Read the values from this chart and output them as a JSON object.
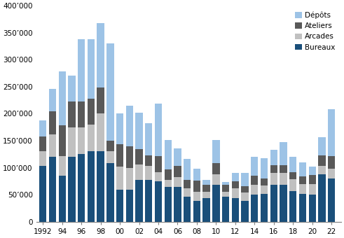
{
  "years": [
    1992,
    1993,
    1994,
    1995,
    1996,
    1997,
    1998,
    1999,
    2000,
    2001,
    2002,
    2003,
    2004,
    2005,
    2006,
    2007,
    2008,
    2009,
    2010,
    2011,
    2012,
    2013,
    2014,
    2015,
    2016,
    2017,
    2018,
    2019,
    2020,
    2021,
    2022
  ],
  "xtick_labels": [
    "1992",
    "94",
    "96",
    "98",
    "00",
    "02",
    "04",
    "06",
    "08",
    "10",
    "12",
    "14",
    "16",
    "18",
    "20",
    "22"
  ],
  "xtick_positions": [
    1992,
    1994,
    1996,
    1998,
    2000,
    2002,
    2004,
    2006,
    2008,
    2010,
    2012,
    2014,
    2016,
    2018,
    2020,
    2022
  ],
  "Bureaux": [
    103000,
    120000,
    85000,
    120000,
    125000,
    130000,
    130000,
    108000,
    60000,
    60000,
    78000,
    78000,
    75000,
    65000,
    65000,
    47000,
    38000,
    44000,
    68000,
    46000,
    44000,
    39000,
    50000,
    52000,
    68000,
    68000,
    57000,
    52000,
    50000,
    88000,
    80000
  ],
  "Arcades": [
    27000,
    42000,
    37000,
    55000,
    50000,
    50000,
    70000,
    22000,
    42000,
    40000,
    28000,
    25000,
    17000,
    12000,
    18000,
    15000,
    18000,
    12000,
    20000,
    10000,
    18000,
    15000,
    18000,
    15000,
    22000,
    22000,
    22000,
    18000,
    20000,
    15000,
    18000
  ],
  "Ateliers": [
    28000,
    42000,
    57000,
    48000,
    48000,
    48000,
    48000,
    20000,
    42000,
    40000,
    28000,
    20000,
    30000,
    20000,
    20000,
    15000,
    20000,
    12000,
    20000,
    12000,
    13000,
    12000,
    17000,
    13000,
    15000,
    15000,
    13000,
    14000,
    17000,
    20000,
    23000
  ],
  "Depots": [
    30000,
    42000,
    100000,
    47000,
    115000,
    110000,
    120000,
    180000,
    56000,
    75000,
    68000,
    60000,
    97000,
    55000,
    33000,
    40000,
    22000,
    10000,
    44000,
    6000,
    15000,
    24000,
    35000,
    38000,
    28000,
    42000,
    28000,
    26000,
    15000,
    33000,
    88000
  ],
  "color_bureaux": "#1a4f7a",
  "color_arcades": "#c0c0c0",
  "color_ateliers": "#595959",
  "color_depots": "#9dc3e6",
  "bar_width": 0.75,
  "ylim": [
    0,
    400000
  ],
  "ytick_values": [
    0,
    50000,
    100000,
    150000,
    200000,
    250000,
    300000,
    350000,
    400000
  ],
  "ytick_labels": [
    "0",
    "50’000",
    "100’000",
    "150’000",
    "200’000",
    "250’000",
    "300’000",
    "350’000",
    "400’000"
  ]
}
